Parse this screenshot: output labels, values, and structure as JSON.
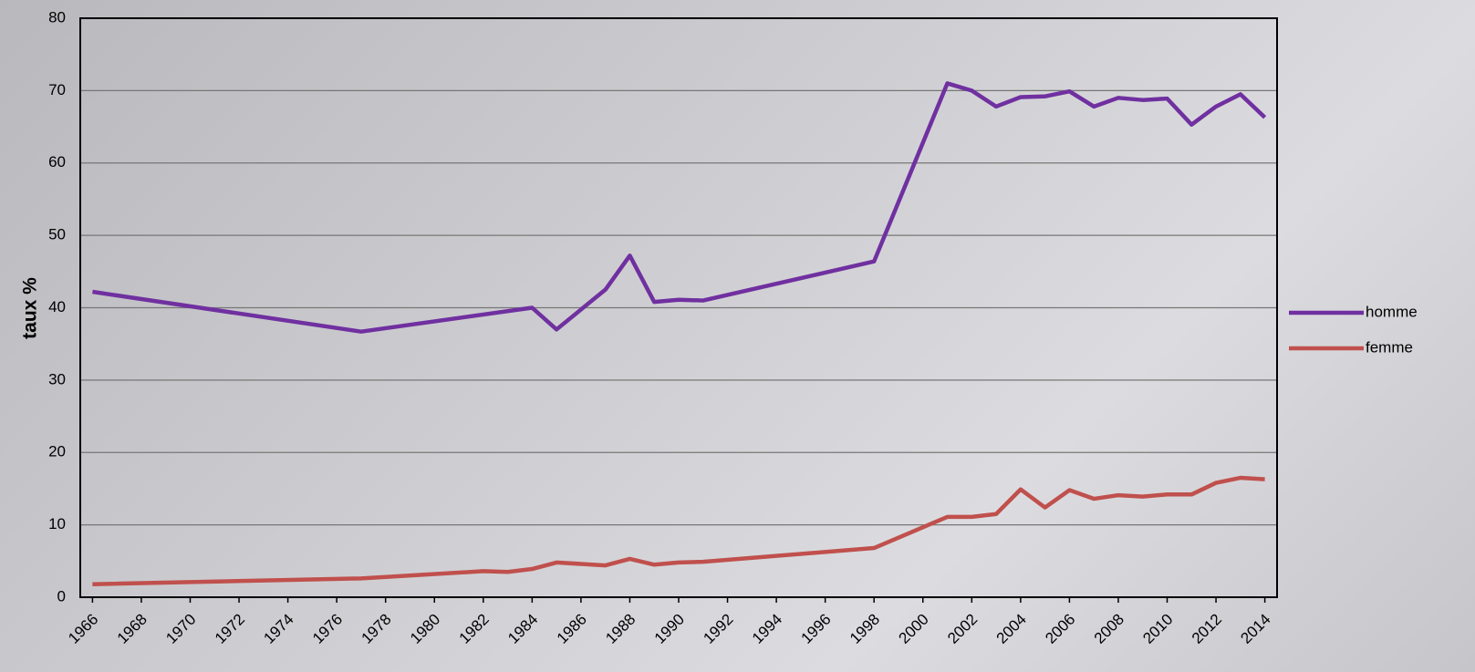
{
  "chart_data": {
    "type": "line",
    "y_label": "taux %",
    "xlim": [
      1965.5,
      2014.5
    ],
    "xticks": [
      1966,
      1968,
      1970,
      1972,
      1974,
      1976,
      1978,
      1980,
      1982,
      1984,
      1986,
      1988,
      1990,
      1992,
      1994,
      1996,
      1998,
      2000,
      2002,
      2004,
      2006,
      2008,
      2010,
      2012,
      2014
    ],
    "ylim": [
      0,
      80
    ],
    "yticks": [
      0,
      10,
      20,
      30,
      40,
      50,
      60,
      70,
      80
    ],
    "grid": true,
    "legend": "right",
    "series": [
      {
        "name": "homme",
        "color": "#7030a0",
        "x": [
          1966,
          1977,
          1984,
          1985,
          1987,
          1988,
          1989,
          1990,
          1991,
          1998,
          2001,
          2002,
          2003,
          2004,
          2005,
          2006,
          2007,
          2008,
          2009,
          2010,
          2011,
          2012,
          2013,
          2014
        ],
        "values": [
          42.2,
          36.7,
          40,
          37,
          42.5,
          47.2,
          40.8,
          41.1,
          41,
          46.4,
          71,
          70,
          67.8,
          69.1,
          69.2,
          69.9,
          67.8,
          69,
          68.7,
          68.9,
          65.3,
          67.8,
          69.5,
          66.3
        ]
      },
      {
        "name": "femme",
        "color": "#c0504d",
        "x": [
          1966,
          1977,
          1982,
          1983,
          1984,
          1985,
          1987,
          1988,
          1989,
          1990,
          1991,
          1998,
          2001,
          2002,
          2003,
          2004,
          2005,
          2006,
          2007,
          2008,
          2009,
          2010,
          2011,
          2012,
          2013,
          2014
        ],
        "values": [
          1.8,
          2.6,
          3.6,
          3.5,
          3.9,
          4.8,
          4.4,
          5.3,
          4.5,
          4.8,
          4.9,
          6.8,
          11.1,
          11.1,
          11.5,
          14.9,
          12.4,
          14.8,
          13.6,
          14.1,
          13.9,
          14.2,
          14.2,
          15.8,
          16.5,
          16.3
        ]
      }
    ]
  }
}
